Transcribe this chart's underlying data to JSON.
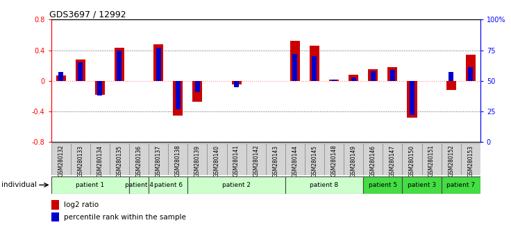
{
  "title": "GDS3697 / 12992",
  "samples": [
    "GSM280132",
    "GSM280133",
    "GSM280134",
    "GSM280135",
    "GSM280136",
    "GSM280137",
    "GSM280138",
    "GSM280139",
    "GSM280140",
    "GSM280141",
    "GSM280142",
    "GSM280143",
    "GSM280144",
    "GSM280145",
    "GSM280148",
    "GSM280149",
    "GSM280146",
    "GSM280147",
    "GSM280150",
    "GSM280151",
    "GSM280152",
    "GSM280153"
  ],
  "log2_ratio": [
    0.07,
    0.28,
    -0.18,
    0.43,
    0.0,
    0.48,
    -0.45,
    -0.27,
    0.0,
    -0.05,
    0.0,
    0.0,
    0.52,
    0.46,
    0.02,
    0.08,
    0.15,
    0.18,
    -0.48,
    0.0,
    -0.12,
    0.34
  ],
  "percentile": [
    57,
    65,
    38,
    75,
    50,
    77,
    27,
    41,
    50,
    45,
    50,
    50,
    72,
    70,
    51,
    53,
    58,
    59,
    22,
    50,
    57,
    61
  ],
  "patients": [
    {
      "label": "patient 1",
      "start": 0,
      "end": 3,
      "color": "#ccffcc"
    },
    {
      "label": "patient 4",
      "start": 4,
      "end": 4,
      "color": "#ccffcc"
    },
    {
      "label": "patient 6",
      "start": 5,
      "end": 6,
      "color": "#ccffcc"
    },
    {
      "label": "patient 2",
      "start": 7,
      "end": 11,
      "color": "#ccffcc"
    },
    {
      "label": "patient 8",
      "start": 12,
      "end": 15,
      "color": "#ccffcc"
    },
    {
      "label": "patient 5",
      "start": 16,
      "end": 17,
      "color": "#44dd44"
    },
    {
      "label": "patient 3",
      "start": 18,
      "end": 19,
      "color": "#44dd44"
    },
    {
      "label": "patient 7",
      "start": 20,
      "end": 21,
      "color": "#44dd44"
    }
  ],
  "ylim_left": [
    -0.8,
    0.8
  ],
  "yticks_left": [
    -0.8,
    -0.4,
    0.0,
    0.4,
    0.8
  ],
  "ytick_labels_left": [
    "-0.8",
    "-0.4",
    "0",
    "0.4",
    "0.8"
  ],
  "yticks_right": [
    0,
    25,
    50,
    75,
    100
  ],
  "ytick_labels_right": [
    "0",
    "25",
    "50",
    "75",
    "100%"
  ],
  "bar_color_log2": "#cc0000",
  "bar_color_pct": "#0000cc",
  "log2_bar_width": 0.5,
  "pct_bar_width": 0.25,
  "hline_color": "#ff8888",
  "dotted_color": "#555555",
  "bg_color": "#ffffff",
  "legend_log2": "log2 ratio",
  "legend_pct": "percentile rank within the sample",
  "individual_label": "individual"
}
